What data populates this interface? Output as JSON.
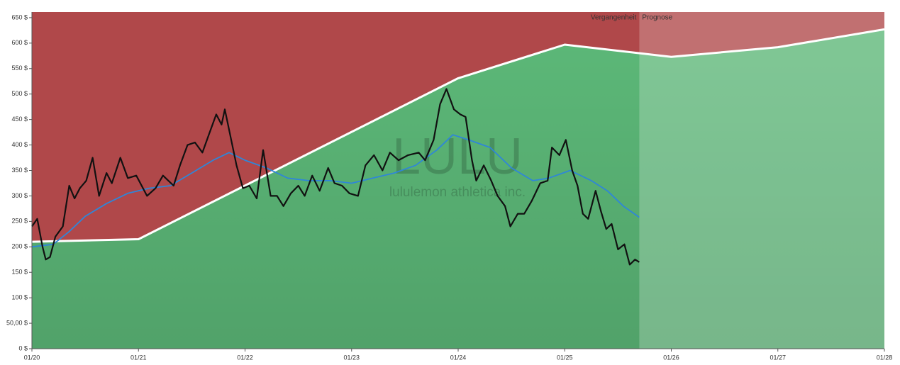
{
  "chart_data": {
    "type": "line",
    "watermark": "LULU",
    "watermark_subtitle": "lululemon athletica inc.",
    "past_label": "Vergangenheit",
    "forecast_label": "Prognose",
    "forecast_start": 2025.7,
    "above_color": "#b0484a",
    "below_color": "#5cb878",
    "xlim": [
      2020,
      2028
    ],
    "xticks": [
      {
        "value": 2020,
        "label": "01/20"
      },
      {
        "value": 2021,
        "label": "01/21"
      },
      {
        "value": 2022,
        "label": "01/22"
      },
      {
        "value": 2023,
        "label": "01/23"
      },
      {
        "value": 2024,
        "label": "01/24"
      },
      {
        "value": 2025,
        "label": "01/25"
      },
      {
        "value": 2026,
        "label": "01/26"
      },
      {
        "value": 2027,
        "label": "01/27"
      },
      {
        "value": 2028,
        "label": "01/28"
      }
    ],
    "ylim": [
      0,
      661
    ],
    "yticks": [
      {
        "value": 0,
        "label": "0 $"
      },
      {
        "value": 50,
        "label": "50,00 $"
      },
      {
        "value": 100,
        "label": "100 $"
      },
      {
        "value": 150,
        "label": "150 $"
      },
      {
        "value": 200,
        "label": "200 $"
      },
      {
        "value": 250,
        "label": "250 $"
      },
      {
        "value": 300,
        "label": "300 $"
      },
      {
        "value": 350,
        "label": "350 $"
      },
      {
        "value": 400,
        "label": "400 $"
      },
      {
        "value": 450,
        "label": "450 $"
      },
      {
        "value": 500,
        "label": "500 $"
      },
      {
        "value": 550,
        "label": "550 $"
      },
      {
        "value": 600,
        "label": "600 $"
      },
      {
        "value": 650,
        "label": "650 $"
      }
    ],
    "series": [
      {
        "color": "#ffffff",
        "x": [
          2020,
          2021,
          2024,
          2025,
          2026,
          2027,
          2028
        ],
        "values": [
          210,
          215,
          531,
          597,
          573,
          592,
          627
        ]
      },
      {
        "color": "#2f86d8",
        "x": [
          2020.0,
          2020.2,
          2020.35,
          2020.5,
          2020.7,
          2020.9,
          2021.1,
          2021.3,
          2021.5,
          2021.7,
          2021.85,
          2022.0,
          2022.2,
          2022.4,
          2022.6,
          2022.8,
          2023.0,
          2023.2,
          2023.4,
          2023.6,
          2023.8,
          2023.95,
          2024.1,
          2024.3,
          2024.5,
          2024.7,
          2024.85,
          2025.05,
          2025.25,
          2025.4,
          2025.55,
          2025.7
        ],
        "values": [
          200,
          205,
          230,
          260,
          285,
          305,
          315,
          320,
          345,
          370,
          385,
          370,
          355,
          335,
          330,
          330,
          325,
          335,
          345,
          360,
          390,
          420,
          410,
          395,
          355,
          330,
          335,
          350,
          330,
          310,
          280,
          258
        ]
      },
      {
        "color": "#111111",
        "x": [
          2020.0,
          2020.05,
          2020.1,
          2020.13,
          2020.17,
          2020.22,
          2020.29,
          2020.35,
          2020.4,
          2020.45,
          2020.51,
          2020.57,
          2020.63,
          2020.7,
          2020.75,
          2020.83,
          2020.9,
          2020.98,
          2021.08,
          2021.16,
          2021.23,
          2021.33,
          2021.39,
          2021.46,
          2021.53,
          2021.6,
          2021.66,
          2021.73,
          2021.78,
          2021.81,
          2021.86,
          2021.92,
          2021.98,
          2022.04,
          2022.11,
          2022.17,
          2022.24,
          2022.3,
          2022.36,
          2022.43,
          2022.5,
          2022.56,
          2022.63,
          2022.7,
          2022.78,
          2022.84,
          2022.91,
          2022.98,
          2023.06,
          2023.13,
          2023.21,
          2023.29,
          2023.36,
          2023.44,
          2023.53,
          2023.63,
          2023.69,
          2023.77,
          2023.83,
          2023.89,
          2023.96,
          2024.02,
          2024.07,
          2024.13,
          2024.17,
          2024.24,
          2024.31,
          2024.37,
          2024.44,
          2024.49,
          2024.56,
          2024.62,
          2024.69,
          2024.77,
          2024.84,
          2024.88,
          2024.95,
          2025.01,
          2025.07,
          2025.12,
          2025.17,
          2025.22,
          2025.29,
          2025.34,
          2025.39,
          2025.44,
          2025.5,
          2025.56,
          2025.61,
          2025.66,
          2025.7
        ],
        "values": [
          240,
          255,
          200,
          175,
          180,
          220,
          240,
          320,
          295,
          315,
          330,
          375,
          300,
          345,
          325,
          375,
          335,
          340,
          300,
          315,
          340,
          320,
          360,
          400,
          405,
          385,
          420,
          460,
          440,
          470,
          420,
          360,
          315,
          320,
          295,
          390,
          300,
          300,
          280,
          305,
          320,
          300,
          340,
          310,
          355,
          325,
          320,
          305,
          300,
          360,
          380,
          350,
          385,
          370,
          380,
          385,
          370,
          410,
          480,
          510,
          470,
          460,
          455,
          370,
          330,
          360,
          330,
          300,
          280,
          240,
          265,
          265,
          290,
          325,
          330,
          395,
          380,
          410,
          350,
          320,
          265,
          255,
          310,
          270,
          235,
          245,
          195,
          205,
          165,
          175,
          170
        ]
      }
    ]
  }
}
